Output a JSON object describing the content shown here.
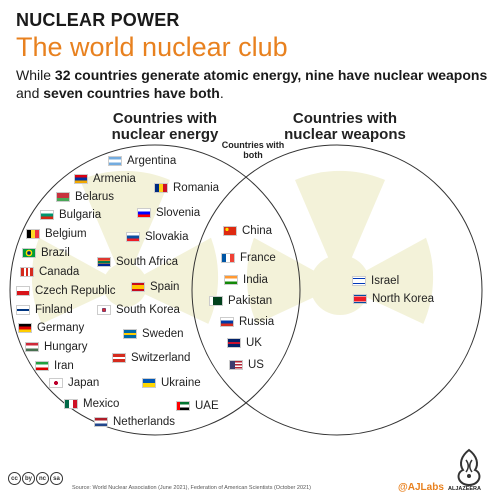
{
  "header": {
    "kicker": "NUCLEAR POWER",
    "title": "The world nuclear club",
    "subtitle_parts": [
      "While ",
      "32 countries generate atomic energy, nine have nuclear weapons",
      " and ",
      "seven countries have both",
      "."
    ]
  },
  "diagram": {
    "left_heading": "Countries with nuclear energy",
    "right_heading": "Countries with nuclear weapons",
    "both_heading": "Countries with both",
    "colors": {
      "circle_stroke": "#333333",
      "radiation_symbol": "#f3f2d9"
    },
    "energy_only": [
      {
        "name": "Argentina",
        "flag": "argentina-flag"
      },
      {
        "name": "Armenia",
        "flag": "armenia-flag"
      },
      {
        "name": "Romania",
        "flag": "romania-flag"
      },
      {
        "name": "Belarus",
        "flag": "belarus-flag"
      },
      {
        "name": "Bulgaria",
        "flag": "bulgaria-flag"
      },
      {
        "name": "Slovenia",
        "flag": "slovenia-flag"
      },
      {
        "name": "Belgium",
        "flag": "belgium-flag"
      },
      {
        "name": "Slovakia",
        "flag": "slovakia-flag"
      },
      {
        "name": "Brazil",
        "flag": "brazil-flag"
      },
      {
        "name": "South Africa",
        "flag": "south-africa-flag"
      },
      {
        "name": "Canada",
        "flag": "canada-flag"
      },
      {
        "name": "Czech Republic",
        "flag": "czech-flag"
      },
      {
        "name": "Spain",
        "flag": "spain-flag"
      },
      {
        "name": "Finland",
        "flag": "finland-flag"
      },
      {
        "name": "South Korea",
        "flag": "south-korea-flag"
      },
      {
        "name": "Germany",
        "flag": "germany-flag"
      },
      {
        "name": "Sweden",
        "flag": "sweden-flag"
      },
      {
        "name": "Hungary",
        "flag": "hungary-flag"
      },
      {
        "name": "Switzerland",
        "flag": "switzerland-flag"
      },
      {
        "name": "Iran",
        "flag": "iran-flag"
      },
      {
        "name": "Japan",
        "flag": "japan-flag"
      },
      {
        "name": "Ukraine",
        "flag": "ukraine-flag"
      },
      {
        "name": "Mexico",
        "flag": "mexico-flag"
      },
      {
        "name": "UAE",
        "flag": "uae-flag"
      },
      {
        "name": "Netherlands",
        "flag": "netherlands-flag"
      }
    ],
    "both": [
      {
        "name": "China",
        "flag": "china-flag"
      },
      {
        "name": "France",
        "flag": "france-flag"
      },
      {
        "name": "India",
        "flag": "india-flag"
      },
      {
        "name": "Pakistan",
        "flag": "pakistan-flag"
      },
      {
        "name": "Russia",
        "flag": "russia-flag"
      },
      {
        "name": "UK",
        "flag": "uk-flag"
      },
      {
        "name": "US",
        "flag": "us-flag"
      }
    ],
    "weapons_only": [
      {
        "name": "Israel",
        "flag": "israel-flag"
      },
      {
        "name": "North Korea",
        "flag": "north-korea-flag"
      }
    ]
  },
  "footer": {
    "license_icons": [
      "cc",
      "by",
      "nc",
      "sa"
    ],
    "source": "Source: World Nuclear Association (June 2021), Federation of American Scientists (October 2021)",
    "handle": "@AJLabs",
    "logo_text": "ALJAZEERA"
  }
}
